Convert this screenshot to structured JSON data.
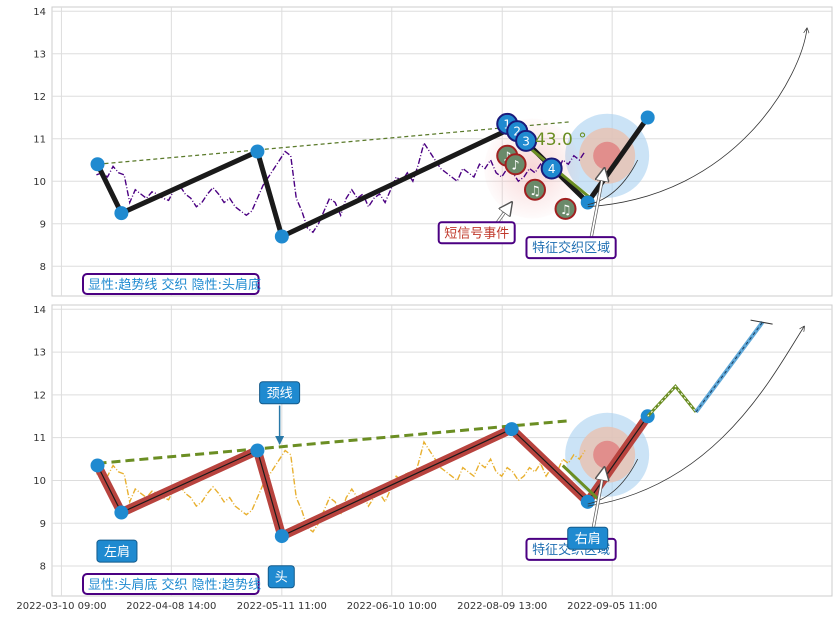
{
  "chart_data": [
    {
      "type": "line",
      "panel": "top",
      "ylim": [
        7.3,
        14.1
      ],
      "yticks": [
        8,
        9,
        10,
        11,
        12,
        13,
        14
      ],
      "grid": true,
      "series": [
        {
          "color": "#4B0082",
          "style": "dashdot",
          "x": [
            0,
            1,
            2,
            3,
            4,
            5,
            6,
            7,
            8,
            9,
            10,
            11,
            12,
            13,
            14,
            15,
            16,
            17,
            18,
            19,
            20,
            21,
            22,
            23,
            24,
            25,
            26,
            27,
            28,
            29,
            30,
            31,
            32,
            33,
            34,
            35,
            36,
            37,
            38,
            39,
            40,
            41,
            42,
            43,
            44,
            45,
            46,
            47,
            48,
            49,
            50,
            51,
            52,
            53,
            54,
            55,
            56,
            57,
            58,
            59,
            60,
            61,
            62,
            63,
            64,
            65,
            66,
            67,
            68,
            69,
            70,
            71,
            72,
            73,
            74,
            75,
            76,
            77,
            78,
            79,
            80,
            81,
            82,
            83,
            84,
            85,
            86,
            87,
            88
          ],
          "y": [
            10.15,
            10.2,
            10.1,
            10.35,
            10.2,
            10.15,
            9.5,
            9.8,
            9.7,
            9.6,
            9.75,
            9.7,
            9.6,
            9.55,
            9.8,
            9.9,
            9.7,
            9.6,
            9.4,
            9.5,
            9.7,
            9.85,
            9.7,
            9.5,
            9.6,
            9.4,
            9.3,
            9.2,
            9.3,
            9.6,
            9.9,
            10.1,
            10.3,
            10.5,
            10.7,
            10.6,
            9.6,
            9.3,
            8.9,
            8.8,
            9.0,
            9.3,
            9.6,
            9.5,
            9.2,
            9.6,
            9.8,
            9.6,
            9.7,
            9.4,
            9.6,
            9.7,
            9.5,
            9.8,
            10.1,
            10.0,
            10.2,
            10.0,
            10.4,
            10.9,
            10.7,
            10.5,
            10.3,
            10.2,
            10.1,
            10.0,
            10.3,
            10.2,
            10.1,
            10.4,
            10.3,
            10.5,
            10.2,
            10.1,
            10.3,
            10.2,
            10.0,
            10.1,
            10.3,
            10.2,
            10.4,
            10.1,
            10.3,
            10.2,
            10.5,
            10.4,
            10.6,
            10.5,
            10.7
          ]
        }
      ],
      "pattern_points": [
        {
          "x": 0.2,
          "y": 10.4
        },
        {
          "x": 4.5,
          "y": 9.25
        },
        {
          "x": 29.0,
          "y": 10.7
        },
        {
          "x": 33.4,
          "y": 8.7
        },
        {
          "x": 74.8,
          "y": 11.25
        },
        {
          "x": 88.5,
          "y": 9.5
        },
        {
          "x": 99.3,
          "y": 11.5
        }
      ],
      "trendline": {
        "x": [
          0.2,
          85.5
        ],
        "y": [
          10.4,
          11.4
        ]
      },
      "signals": [
        {
          "x": 74.0,
          "y": 11.35,
          "label": "1"
        },
        {
          "x": 75.8,
          "y": 11.18,
          "label": "2"
        },
        {
          "x": 77.4,
          "y": 10.95,
          "label": "3"
        },
        {
          "x": 82.0,
          "y": 10.3,
          "label": "4"
        }
      ],
      "notes": [
        {
          "x": 74.0,
          "y": 10.6,
          "symbol": "♪"
        },
        {
          "x": 75.5,
          "y": 10.4,
          "symbol": "♪"
        },
        {
          "x": 79.0,
          "y": 9.8,
          "symbol": "♫"
        },
        {
          "x": 84.5,
          "y": 9.35,
          "symbol": "♫"
        }
      ],
      "angle_label": "43.0 °",
      "annotations": [
        {
          "text": "短信号事件",
          "color": "#C0392B",
          "box_x": 68.5,
          "box_y": 8.8,
          "target_x": 74.8,
          "target_y": 9.5
        },
        {
          "text": "特征交织区域",
          "color": "#1F6FB2",
          "box_x": 85.5,
          "box_y": 8.45,
          "target_x": 91.5,
          "target_y": 10.3
        }
      ],
      "caption": "显性:趋势线 交织 隐性:头肩底"
    },
    {
      "type": "line",
      "panel": "bottom",
      "ylim": [
        7.3,
        14.1
      ],
      "yticks": [
        8,
        9,
        10,
        11,
        12,
        13,
        14
      ],
      "grid": true,
      "series": [
        {
          "color": "#E8B030",
          "style": "dashdot",
          "x": [
            0,
            1,
            2,
            3,
            4,
            5,
            6,
            7,
            8,
            9,
            10,
            11,
            12,
            13,
            14,
            15,
            16,
            17,
            18,
            19,
            20,
            21,
            22,
            23,
            24,
            25,
            26,
            27,
            28,
            29,
            30,
            31,
            32,
            33,
            34,
            35,
            36,
            37,
            38,
            39,
            40,
            41,
            42,
            43,
            44,
            45,
            46,
            47,
            48,
            49,
            50,
            51,
            52,
            53,
            54,
            55,
            56,
            57,
            58,
            59,
            60,
            61,
            62,
            63,
            64,
            65,
            66,
            67,
            68,
            69,
            70,
            71,
            72,
            73,
            74,
            75,
            76,
            77,
            78,
            79,
            80,
            81,
            82,
            83,
            84,
            85,
            86,
            87,
            88
          ],
          "y": [
            10.15,
            10.2,
            10.1,
            10.35,
            10.2,
            10.15,
            9.5,
            9.8,
            9.7,
            9.6,
            9.75,
            9.7,
            9.6,
            9.55,
            9.8,
            9.9,
            9.7,
            9.6,
            9.4,
            9.5,
            9.7,
            9.85,
            9.7,
            9.5,
            9.6,
            9.4,
            9.3,
            9.2,
            9.3,
            9.6,
            9.9,
            10.1,
            10.3,
            10.5,
            10.7,
            10.6,
            9.6,
            9.3,
            8.9,
            8.8,
            9.0,
            9.3,
            9.6,
            9.5,
            9.2,
            9.6,
            9.8,
            9.6,
            9.7,
            9.4,
            9.6,
            9.7,
            9.5,
            9.8,
            10.1,
            10.0,
            10.2,
            10.0,
            10.4,
            10.9,
            10.7,
            10.5,
            10.3,
            10.2,
            10.1,
            10.0,
            10.3,
            10.2,
            10.1,
            10.4,
            10.3,
            10.5,
            10.2,
            10.1,
            10.3,
            10.2,
            10.0,
            10.1,
            10.3,
            10.2,
            10.4,
            10.1,
            10.3,
            10.2,
            10.5,
            10.4,
            10.6,
            10.5,
            10.7
          ]
        }
      ],
      "pattern_points": [
        {
          "x": 0.2,
          "y": 10.35
        },
        {
          "x": 4.5,
          "y": 9.25
        },
        {
          "x": 29.0,
          "y": 10.7
        },
        {
          "x": 33.4,
          "y": 8.7
        },
        {
          "x": 74.8,
          "y": 11.2
        },
        {
          "x": 88.5,
          "y": 9.5
        },
        {
          "x": 99.3,
          "y": 11.5
        }
      ],
      "neckline": {
        "x": [
          0.2,
          85.5
        ],
        "y": [
          10.4,
          11.4
        ]
      },
      "projection": {
        "x": [
          99.3,
          104.3,
          108.0,
          120.0
        ],
        "y": [
          11.5,
          12.2,
          11.6,
          13.7
        ]
      },
      "labels": [
        {
          "text": "左肩",
          "x": 3.7,
          "y": 8.35
        },
        {
          "text": "头",
          "x": 33.3,
          "y": 7.75
        },
        {
          "text": "右肩",
          "x": 88.5,
          "y": 8.65
        },
        {
          "text": "颈线",
          "x": 33.0,
          "y": 12.05
        }
      ],
      "annotations": [
        {
          "text": "特征交织区域",
          "color": "#1F6FB2",
          "box_x": 85.5,
          "box_y": 8.4,
          "target_x": 91.5,
          "target_y": 10.3
        }
      ],
      "caption": "显性:头肩底 交织 隐性:趋势线"
    }
  ],
  "x_axis": {
    "ticks": [
      {
        "x": -6.3,
        "label": "2022-03-10 09:00"
      },
      {
        "x": 13.5,
        "label": "2022-04-08 14:00"
      },
      {
        "x": 33.4,
        "label": "2022-05-11 11:00"
      },
      {
        "x": 53.2,
        "label": "2022-06-10 10:00"
      },
      {
        "x": 73.1,
        "label": "2022-08-09 13:00"
      },
      {
        "x": 92.9,
        "label": "2022-09-05 11:00"
      }
    ]
  },
  "colors": {
    "pivot": "#1f8ad0",
    "pattern_line": "#1a1a1a",
    "shoulder_fill": "#b8433e",
    "trend_dashed_top": "#5a7a2a",
    "trend_dashed_bottom": "#6b8e23",
    "label_box": "#1f8ad0",
    "caption_border": "#4B0082",
    "caption_text": "#1f8ad0"
  }
}
